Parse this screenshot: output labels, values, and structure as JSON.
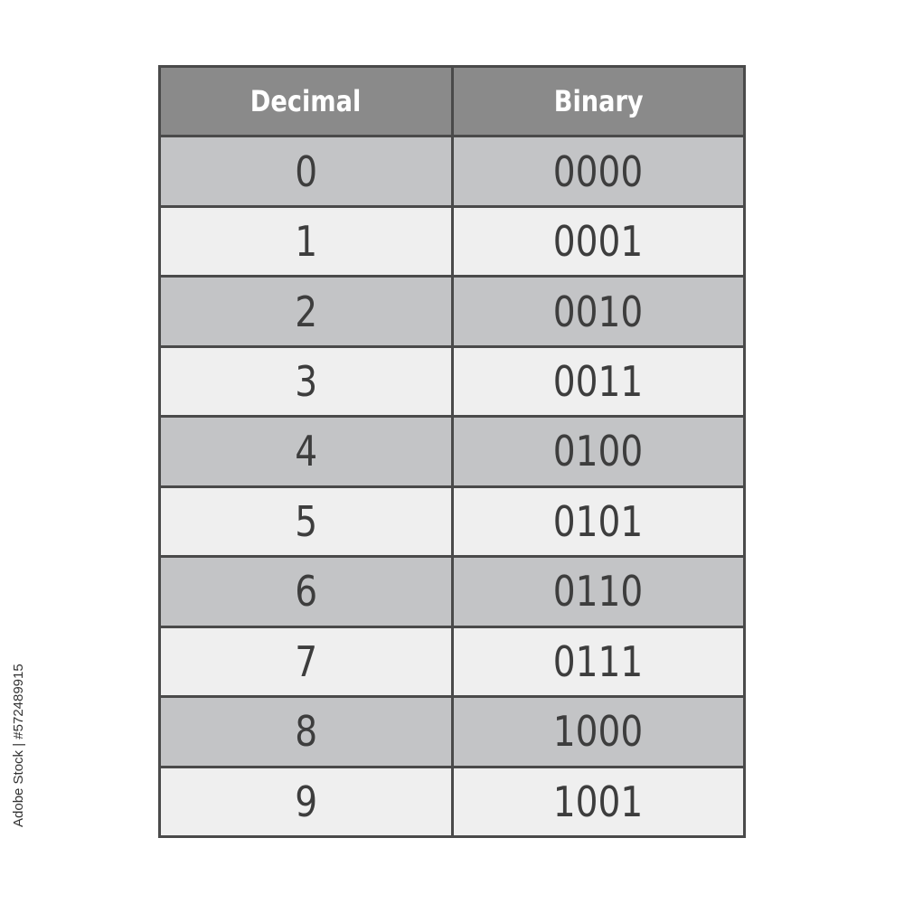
{
  "table": {
    "headers": [
      "Decimal",
      "Binary"
    ],
    "rows": [
      [
        "0",
        "0000"
      ],
      [
        "1",
        "0001"
      ],
      [
        "2",
        "0010"
      ],
      [
        "3",
        "0011"
      ],
      [
        "4",
        "0100"
      ],
      [
        "5",
        "0101"
      ],
      [
        "6",
        "0110"
      ],
      [
        "7",
        "0111"
      ],
      [
        "8",
        "1000"
      ],
      [
        "9",
        "1001"
      ]
    ]
  },
  "watermark": {
    "side_text": "Adobe Stock | #572489915",
    "overlay_text": "Adobe Stock"
  },
  "colors": {
    "header_bg": "#8a8a8a",
    "row_dark": "#c3c4c6",
    "row_light": "#efefef",
    "border": "#4a4a4a",
    "text": "#3d3d3d"
  }
}
